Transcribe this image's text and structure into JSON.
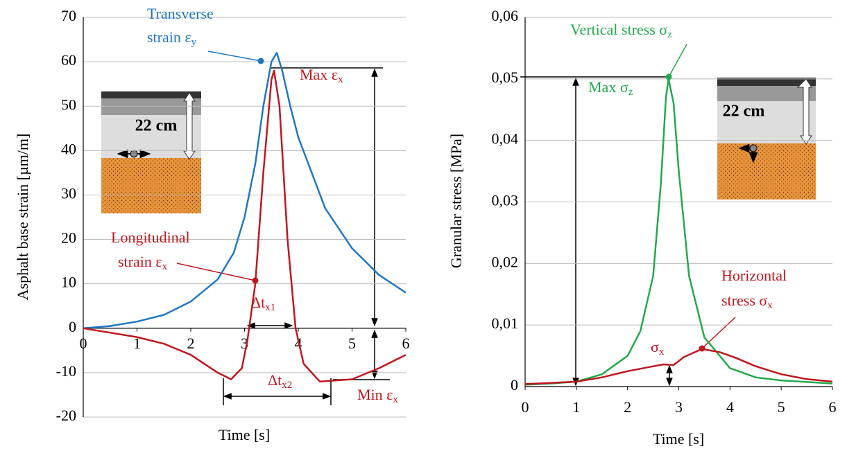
{
  "chart_data": [
    {
      "type": "line",
      "xlabel": "Time [s]",
      "ylabel": "Asphalt base strain [µm/m]",
      "xlim": [
        0,
        6
      ],
      "xticks": [
        0,
        1,
        2,
        3,
        4,
        5,
        6
      ],
      "ylim": [
        -20,
        70
      ],
      "yticks": [
        -20,
        -10,
        0,
        10,
        20,
        30,
        40,
        50,
        60,
        70
      ],
      "grid": true,
      "series": [
        {
          "color": "#1f77c4",
          "x": [
            0,
            0.5,
            1,
            1.5,
            2,
            2.5,
            2.8,
            3,
            3.2,
            3.35,
            3.5,
            3.6,
            3.7,
            3.85,
            4,
            4.25,
            4.5,
            5,
            5.5,
            6
          ],
          "values": [
            0,
            0.5,
            1.5,
            3,
            6,
            11,
            17,
            25,
            37,
            50,
            60,
            62,
            58,
            50,
            43,
            35,
            27,
            18,
            12,
            8
          ]
        },
        {
          "color": "#c0161d",
          "x": [
            0,
            0.5,
            1,
            1.5,
            2,
            2.5,
            2.75,
            2.95,
            3.05,
            3.2,
            3.35,
            3.5,
            3.55,
            3.65,
            3.8,
            3.95,
            4.1,
            4.4,
            5,
            5.5,
            6
          ],
          "values": [
            0,
            -1,
            -2,
            -3.5,
            -6,
            -10,
            -11.5,
            -9,
            -3,
            10,
            35,
            56,
            58,
            50,
            20,
            0,
            -8,
            -12,
            -11.5,
            -9,
            -6
          ]
        }
      ],
      "annotations": [
        {
          "text": "Transverse",
          "color": "#1f77c4"
        },
        {
          "text": "strain ε",
          "sub": "y",
          "color": "#1f77c4"
        },
        {
          "text": "Max ε",
          "sub": "x",
          "color": "#c0161d"
        },
        {
          "text": "Longitudinal",
          "color": "#c0161d"
        },
        {
          "text": "strain ε",
          "sub": "x",
          "color": "#c0161d"
        },
        {
          "text": "Δt",
          "sub": "x1",
          "color": "#c0161d"
        },
        {
          "text": "Δt",
          "sub": "x2",
          "color": "#c0161d"
        },
        {
          "text": "Min ε",
          "sub": "x",
          "color": "#c0161d"
        }
      ],
      "inset_label": "22 cm"
    },
    {
      "type": "line",
      "xlabel": "Time [s]",
      "ylabel": "Granular stress [MPa]",
      "xlim": [
        0,
        6
      ],
      "xticks": [
        0,
        1,
        2,
        3,
        4,
        5,
        6
      ],
      "ylim": [
        0,
        0.06
      ],
      "yticks": [
        0,
        {
          "value": 0.01,
          "label": "0,01"
        },
        {
          "value": 0.02,
          "label": "0,02"
        },
        {
          "value": 0.03,
          "label": "0,03"
        },
        {
          "value": 0.04,
          "label": "0,04"
        },
        {
          "value": 0.05,
          "label": "0,05"
        },
        {
          "value": 0.06,
          "label": "0,06"
        }
      ],
      "grid": true,
      "series": [
        {
          "color": "#22aa4c",
          "x": [
            0,
            0.5,
            1,
            1.5,
            2,
            2.25,
            2.5,
            2.65,
            2.75,
            2.8,
            2.9,
            3,
            3.2,
            3.5,
            4,
            4.5,
            5,
            6
          ],
          "values": [
            0.0003,
            0.0005,
            0.0008,
            0.002,
            0.005,
            0.009,
            0.018,
            0.033,
            0.047,
            0.05,
            0.046,
            0.035,
            0.018,
            0.008,
            0.003,
            0.0015,
            0.001,
            0.0005
          ]
        },
        {
          "color": "#c0161d",
          "x": [
            0,
            0.5,
            1,
            1.5,
            2,
            2.5,
            2.7,
            2.9,
            3.1,
            3.45,
            3.8,
            4.1,
            4.5,
            5,
            5.5,
            6
          ],
          "values": [
            0.0004,
            0.0006,
            0.0008,
            0.0015,
            0.0025,
            0.0033,
            0.0036,
            0.0035,
            0.0048,
            0.0061,
            0.0056,
            0.0047,
            0.0033,
            0.002,
            0.0012,
            0.0008
          ]
        }
      ],
      "annotations": [
        {
          "text": "Vertical stress σ",
          "sub": "z",
          "color": "#22aa4c"
        },
        {
          "text": "Max σ",
          "sub": "z",
          "color": "#22aa4c"
        },
        {
          "text": "Horizontal",
          "color": "#c0161d"
        },
        {
          "text": "stress σ",
          "sub": "x",
          "color": "#c0161d"
        },
        {
          "text": "σ",
          "sub": "x",
          "color": "#c0161d"
        }
      ],
      "inset_label": "22 cm"
    }
  ]
}
